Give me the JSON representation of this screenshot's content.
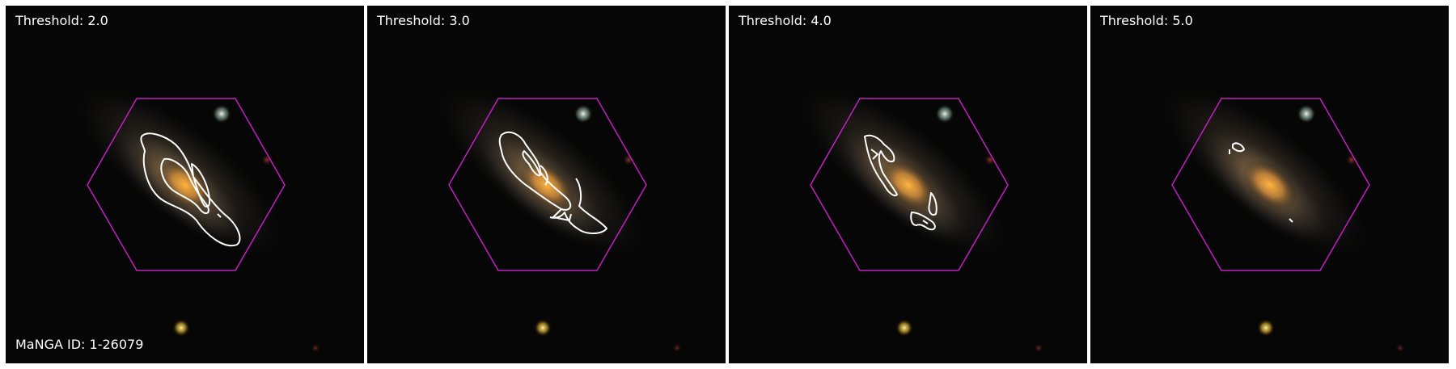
{
  "figure": {
    "panels": [
      {
        "threshold_label": "Threshold: 2.0",
        "threshold": 2.0
      },
      {
        "threshold_label": "Threshold: 3.0",
        "threshold": 3.0
      },
      {
        "threshold_label": "Threshold: 4.0",
        "threshold": 4.0
      },
      {
        "threshold_label": "Threshold: 5.0",
        "threshold": 5.0
      }
    ],
    "manga_id_label": "MaNGA ID: 1-26079"
  },
  "colors": {
    "background": "#ffffff",
    "sky": "#050505",
    "hexagon": "#c21ec2",
    "contour": "#ffffff",
    "text": "#ffffff"
  }
}
